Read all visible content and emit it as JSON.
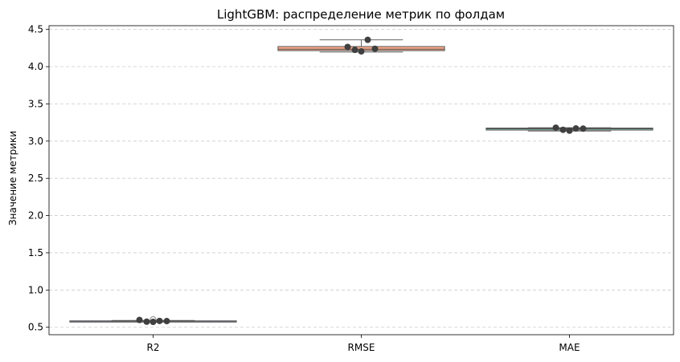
{
  "chart_data": {
    "type": "box",
    "title": "LightGBM: распределение метрик по фолдам",
    "xlabel": "",
    "ylabel": "Значение метрики",
    "ylim": [
      0.4,
      4.55
    ],
    "yticks": [
      "0.5",
      "1.0",
      "1.5",
      "2.0",
      "2.5",
      "3.0",
      "3.5",
      "4.0",
      "4.5"
    ],
    "grid": "horizontal dashed",
    "categories": [
      "R2",
      "RMSE",
      "MAE"
    ],
    "colors": [
      "#8da0cb",
      "#fc8d62",
      "#66c2a5"
    ],
    "boxes": [
      {
        "category": "R2",
        "whisker_low": 0.575,
        "q1": 0.578,
        "median": 0.582,
        "q3": 0.586,
        "whisker_high": 0.592,
        "outliers": [
          0.605
        ]
      },
      {
        "category": "RMSE",
        "whisker_low": 4.195,
        "q1": 4.215,
        "median": 4.235,
        "q3": 4.27,
        "whisker_high": 4.36,
        "outliers": []
      },
      {
        "category": "MAE",
        "whisker_low": 3.135,
        "q1": 3.148,
        "median": 3.165,
        "q3": 3.175,
        "whisker_high": 3.18,
        "outliers": []
      }
    ],
    "points": [
      {
        "category": "R2",
        "values": [
          0.598,
          0.575,
          0.572,
          0.585,
          0.583
        ]
      },
      {
        "category": "RMSE",
        "values": [
          4.265,
          4.225,
          4.205,
          4.36,
          4.24
        ]
      },
      {
        "category": "MAE",
        "values": [
          3.18,
          3.152,
          3.14,
          3.17,
          3.168
        ]
      }
    ]
  }
}
